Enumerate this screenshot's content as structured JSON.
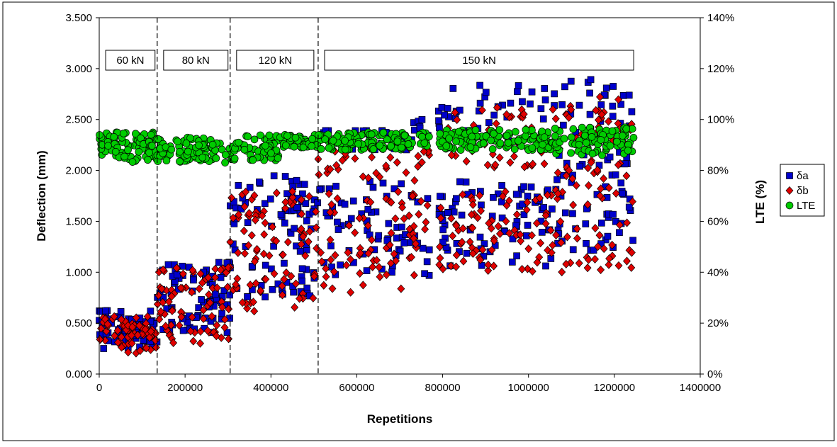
{
  "chart_data": {
    "type": "scatter",
    "xlabel": "Repetitions",
    "ylabel": "Deflection (mm)",
    "y2label": "LTE (%)",
    "xlim": [
      0,
      1400000
    ],
    "ylim": [
      0,
      3.5
    ],
    "y2lim": [
      0,
      140
    ],
    "xticks": [
      "0",
      "200000",
      "400000",
      "600000",
      "800000",
      "1000000",
      "1200000",
      "1400000"
    ],
    "yticks": [
      "0.000",
      "0.500",
      "1.000",
      "1.500",
      "2.000",
      "2.500",
      "3.000",
      "3.500"
    ],
    "y2ticks": [
      "0%",
      "20%",
      "40%",
      "60%",
      "80%",
      "100%",
      "120%",
      "140%"
    ],
    "grid": false,
    "legend_position": "right",
    "phase_dividers": [
      135000,
      305000,
      510000
    ],
    "phases": [
      {
        "label": "60 kN",
        "x_start": 15000,
        "x_end": 130000
      },
      {
        "label": "80 kN",
        "x_start": 150000,
        "x_end": 300000
      },
      {
        "label": "120 kN",
        "x_start": 320000,
        "x_end": 500000
      },
      {
        "label": "150 kN",
        "x_start": 525000,
        "x_end": 1245000
      }
    ],
    "series": [
      {
        "name": "δa",
        "axis": "left",
        "marker": "square",
        "color": "#0000CC",
        "segments": [
          {
            "x_start": 0,
            "x_end": 135000,
            "bands": [
              [
                0.25,
                0.55
              ],
              [
                0.3,
                0.65
              ]
            ],
            "count": 70
          },
          {
            "x_start": 135000,
            "x_end": 305000,
            "bands": [
              [
                0.4,
                0.75
              ],
              [
                0.75,
                1.1
              ]
            ],
            "count": 80
          },
          {
            "x_start": 305000,
            "x_end": 510000,
            "bands": [
              [
                0.75,
                1.1
              ],
              [
                1.2,
                1.65
              ],
              [
                1.6,
                2.0
              ]
            ],
            "count": 90
          },
          {
            "x_start": 510000,
            "x_end": 770000,
            "bands": [
              [
                0.95,
                1.45
              ],
              [
                1.4,
                1.9
              ],
              [
                2.2,
                2.5
              ]
            ],
            "count": 110
          },
          {
            "x_start": 790000,
            "x_end": 1060000,
            "bands": [
              [
                1.05,
                1.6
              ],
              [
                1.55,
                1.9
              ],
              [
                2.3,
                2.85
              ]
            ],
            "count": 120
          },
          {
            "x_start": 1060000,
            "x_end": 1245000,
            "bands": [
              [
                1.2,
                1.65
              ],
              [
                1.7,
                2.2
              ],
              [
                2.35,
                2.9
              ]
            ],
            "count": 90
          }
        ]
      },
      {
        "name": "δb",
        "axis": "left",
        "marker": "diamond",
        "color": "#E00000",
        "segments": [
          {
            "x_start": 0,
            "x_end": 135000,
            "bands": [
              [
                0.2,
                0.5
              ],
              [
                0.3,
                0.6
              ]
            ],
            "count": 70
          },
          {
            "x_start": 135000,
            "x_end": 305000,
            "bands": [
              [
                0.3,
                0.7
              ],
              [
                0.7,
                1.05
              ]
            ],
            "count": 80
          },
          {
            "x_start": 305000,
            "x_end": 510000,
            "bands": [
              [
                0.6,
                1.0
              ],
              [
                1.1,
                1.5
              ],
              [
                1.5,
                1.8
              ]
            ],
            "count": 90
          },
          {
            "x_start": 510000,
            "x_end": 770000,
            "bands": [
              [
                0.8,
                1.3
              ],
              [
                1.3,
                1.8
              ],
              [
                1.9,
                2.25
              ]
            ],
            "count": 110
          },
          {
            "x_start": 790000,
            "x_end": 1060000,
            "bands": [
              [
                1.0,
                1.4
              ],
              [
                1.4,
                1.8
              ],
              [
                2.0,
                2.65
              ]
            ],
            "count": 120
          },
          {
            "x_start": 1060000,
            "x_end": 1245000,
            "bands": [
              [
                1.0,
                1.5
              ],
              [
                1.6,
                2.1
              ],
              [
                2.2,
                2.75
              ]
            ],
            "count": 90
          }
        ]
      },
      {
        "name": "LTE",
        "axis": "right",
        "marker": "circle",
        "color": "#00CC00",
        "segments": [
          {
            "x_start": 0,
            "x_end": 135000,
            "bands": [
              [
                83,
                95
              ]
            ],
            "count": 90
          },
          {
            "x_start": 135000,
            "x_end": 305000,
            "bands": [
              [
                83,
                93
              ]
            ],
            "count": 90
          },
          {
            "x_start": 305000,
            "x_end": 420000,
            "bands": [
              [
                84,
                94
              ]
            ],
            "count": 60
          },
          {
            "x_start": 420000,
            "x_end": 510000,
            "bands": [
              [
                89,
                94
              ]
            ],
            "count": 50
          },
          {
            "x_start": 510000,
            "x_end": 770000,
            "bands": [
              [
                88,
                95
              ]
            ],
            "count": 120
          },
          {
            "x_start": 790000,
            "x_end": 1060000,
            "bands": [
              [
                88,
                96
              ]
            ],
            "count": 130
          },
          {
            "x_start": 1060000,
            "x_end": 1245000,
            "bands": [
              [
                86,
                97
              ]
            ],
            "count": 90
          }
        ]
      }
    ]
  }
}
